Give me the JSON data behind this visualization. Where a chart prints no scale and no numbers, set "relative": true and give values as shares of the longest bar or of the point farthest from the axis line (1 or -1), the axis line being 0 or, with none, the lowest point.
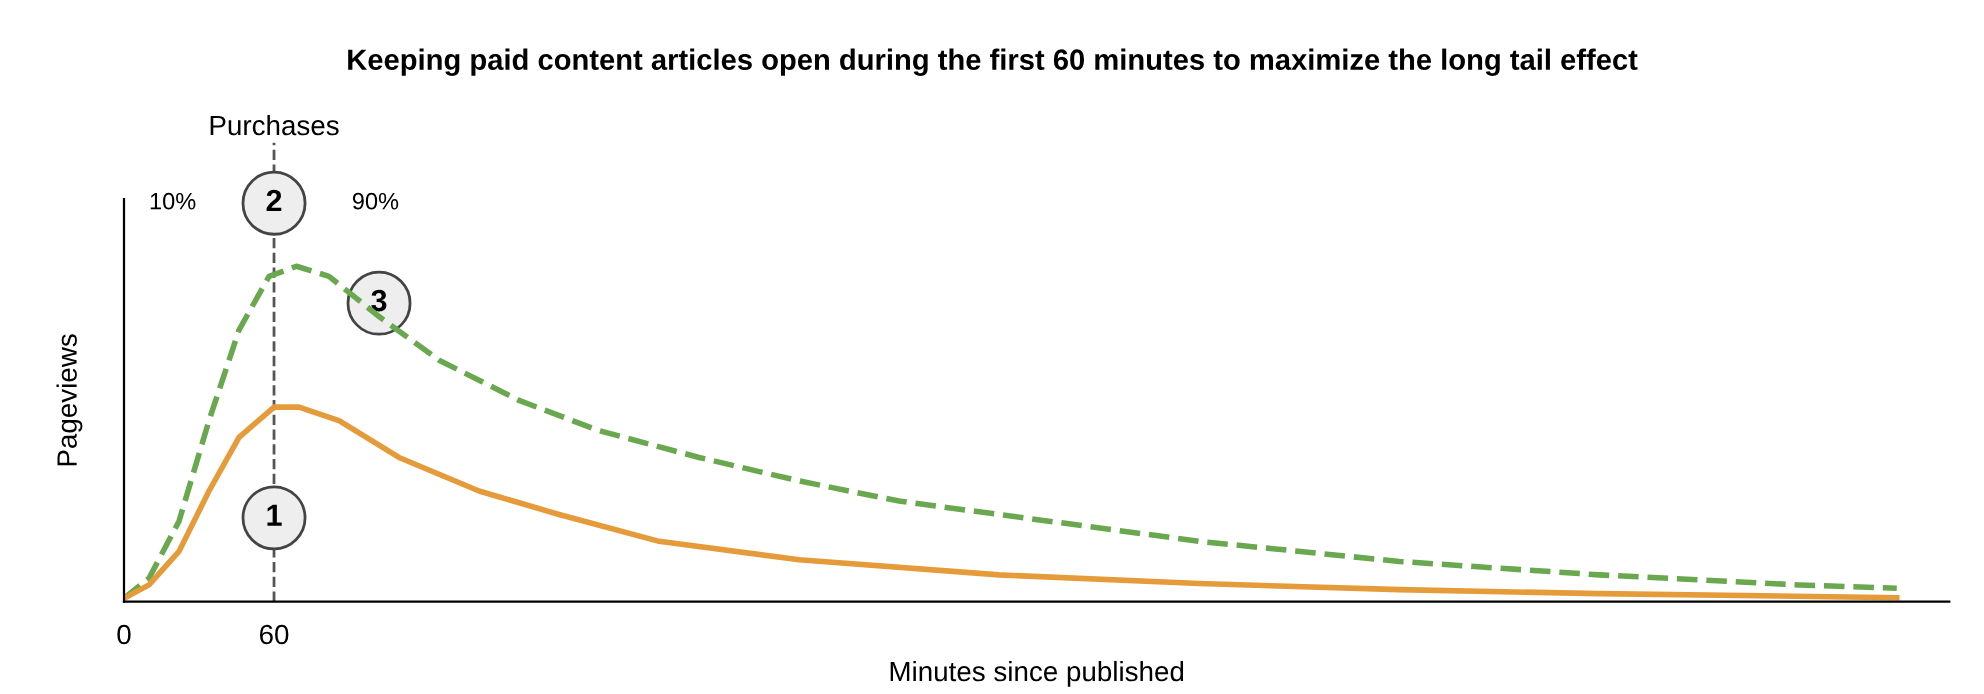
{
  "chart_data": {
    "type": "line",
    "title": "Keeping paid content articles open during the first 60 minutes to maximize the long tail effect",
    "xlabel": "Minutes since published",
    "ylabel": "Pageviews",
    "relative": true,
    "xlim": [
      0,
      730
    ],
    "xticks": [
      0,
      60
    ],
    "grid": false,
    "legend": false,
    "marker": "none",
    "series": [
      {
        "color": "#6aa84f",
        "line_style": "dashed",
        "x": [
          0,
          10,
          22,
          34,
          46,
          58,
          69,
          82,
          102,
          126,
          158,
          190,
          230,
          270,
          310,
          350,
          430,
          510,
          590,
          670,
          709
        ],
        "values": [
          0.01,
          0.07,
          0.24,
          0.54,
          0.81,
          0.97,
          1.0,
          0.97,
          0.85,
          0.72,
          0.6,
          0.51,
          0.43,
          0.36,
          0.3,
          0.26,
          0.18,
          0.12,
          0.08,
          0.05,
          0.04
        ]
      },
      {
        "color": "#e69b3a",
        "line_style": "solid",
        "x": [
          0,
          10,
          22,
          34,
          46,
          60,
          70,
          86,
          110,
          142,
          174,
          214,
          270,
          350,
          430,
          510,
          590,
          709
        ],
        "values": [
          0.01,
          0.05,
          0.15,
          0.33,
          0.49,
          0.58,
          0.58,
          0.54,
          0.43,
          0.33,
          0.26,
          0.18,
          0.125,
          0.08,
          0.054,
          0.036,
          0.024,
          0.012
        ]
      }
    ],
    "ref_lines": [
      {
        "axis": "x",
        "value": 60,
        "line_style": "dashed",
        "color": "#555555",
        "label": "Purchases"
      }
    ],
    "annotations": [
      "10%",
      "2",
      "90%",
      {
        "text": "3",
        "x": 102,
        "y": 0.89
      },
      {
        "text": "1",
        "x": 60,
        "y": 0.25
      }
    ]
  }
}
